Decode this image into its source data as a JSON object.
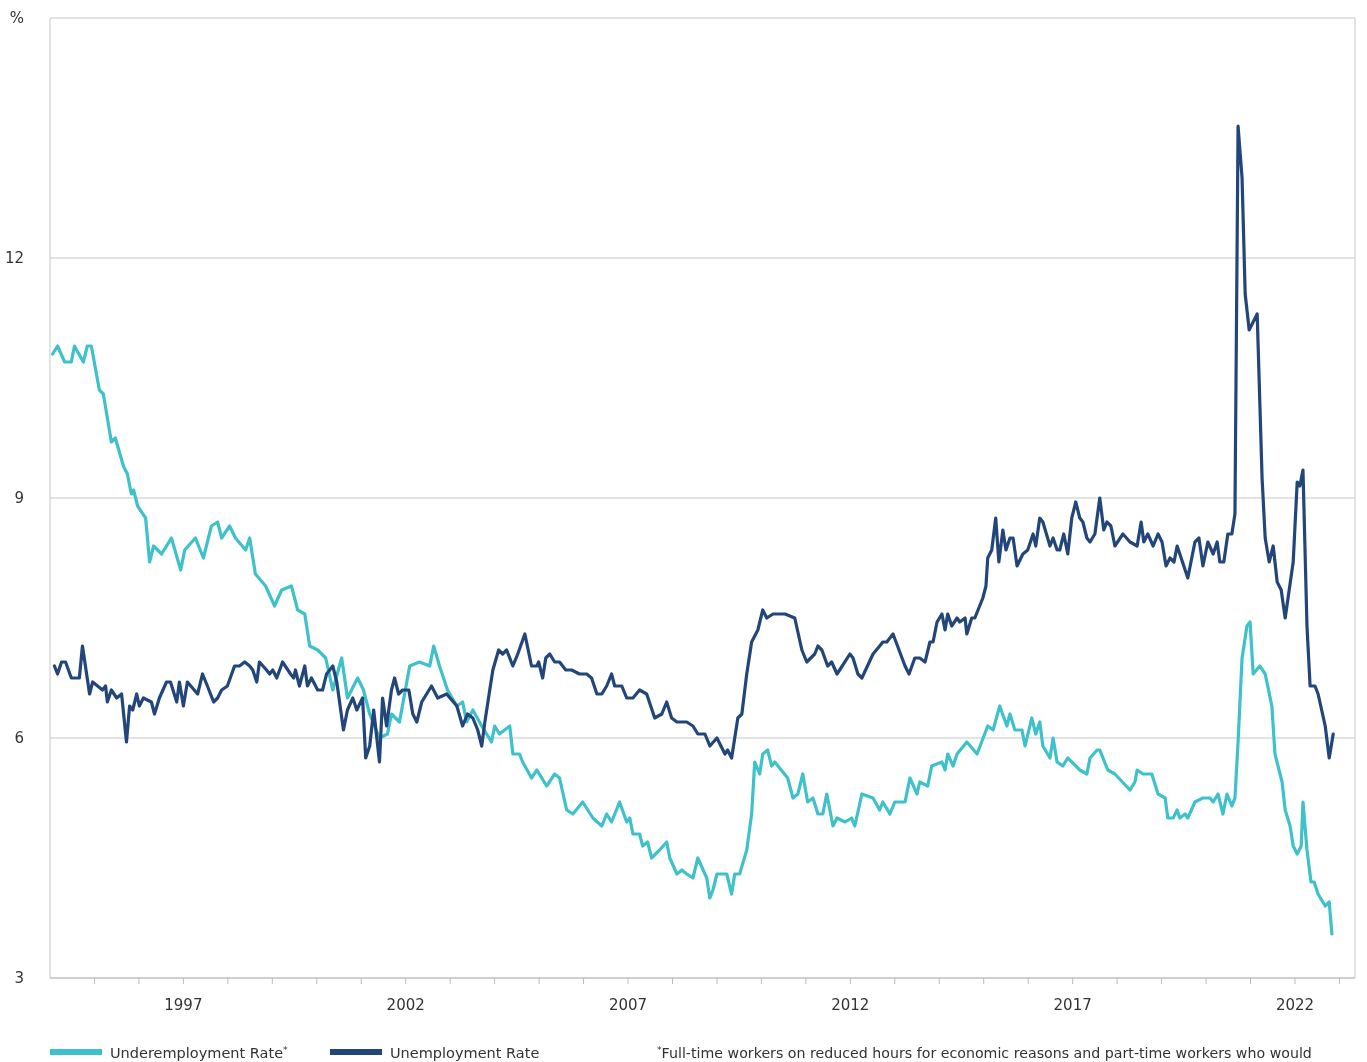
{
  "chart_data": {
    "type": "line",
    "ylabel": "%",
    "xlim": [
      1994,
      2023.35
    ],
    "ylim": [
      3,
      15
    ],
    "xticks": [
      {
        "value": 1995,
        "label": null
      },
      {
        "value": 1996,
        "label": null
      },
      1997,
      {
        "value": 1998,
        "label": null
      },
      {
        "value": 1999,
        "label": null
      },
      {
        "value": 2000,
        "label": null
      },
      {
        "value": 2001,
        "label": null
      },
      2002,
      {
        "value": 2003,
        "label": null
      },
      {
        "value": 2004,
        "label": null
      },
      {
        "value": 2005,
        "label": null
      },
      {
        "value": 2006,
        "label": null
      },
      2007,
      {
        "value": 2008,
        "label": null
      },
      {
        "value": 2009,
        "label": null
      },
      {
        "value": 2010,
        "label": null
      },
      {
        "value": 2011,
        "label": null
      },
      2012,
      {
        "value": 2013,
        "label": null
      },
      {
        "value": 2014,
        "label": null
      },
      {
        "value": 2015,
        "label": null
      },
      {
        "value": 2016,
        "label": null
      },
      2017,
      {
        "value": 2018,
        "label": null
      },
      {
        "value": 2019,
        "label": null
      },
      {
        "value": 2020,
        "label": null
      },
      {
        "value": 2021,
        "label": null
      },
      2022,
      {
        "value": 2023,
        "label": null
      }
    ],
    "yticks": [
      3,
      6,
      9,
      12
    ],
    "grid": "y",
    "legend": "bottom",
    "line_style": "solid",
    "marker": "none",
    "annotations": [
      "$^{*}$Full-time workers on reduced hours for economic reasons and part-time workers who would"
    ],
    "series": [
      {
        "name": "Underemployment Rate$^{*}$",
        "color": "#3fc1cb",
        "x": [
          1994.06,
          1994.17,
          1994.33,
          1994.48,
          1994.55,
          1994.75,
          1994.84,
          1994.93,
          1995.11,
          1995.2,
          1995.38,
          1995.47,
          1995.65,
          1995.74,
          1995.83,
          1995.88,
          1995.97,
          1996.15,
          1996.24,
          1996.33,
          1996.51,
          1996.73,
          1996.94,
          1997.03,
          1997.27,
          1997.45,
          1997.63,
          1997.77,
          1997.86,
          1998.04,
          1998.17,
          1998.4,
          1998.49,
          1998.62,
          1998.85,
          1999.05,
          1999.21,
          1999.43,
          1999.57,
          1999.73,
          1999.84,
          2000.02,
          2000.2,
          2000.36,
          2000.56,
          2000.69,
          2000.92,
          2001.05,
          2001.19,
          2001.41,
          2001.59,
          2001.68,
          2001.86,
          2002.09,
          2002.31,
          2002.54,
          2002.63,
          2002.76,
          2002.94,
          2003.15,
          2003.28,
          2003.37,
          2003.51,
          2003.71,
          2003.93,
          2004.0,
          2004.11,
          2004.34,
          2004.41,
          2004.56,
          2004.63,
          2004.83,
          2004.95,
          2005.17,
          2005.35,
          2005.46,
          2005.62,
          2005.76,
          2005.98,
          2006.21,
          2006.41,
          2006.52,
          2006.63,
          2006.81,
          2006.97,
          2007.04,
          2007.11,
          2007.26,
          2007.33,
          2007.44,
          2007.53,
          2007.71,
          2007.87,
          2007.94,
          2008.1,
          2008.21,
          2008.32,
          2008.46,
          2008.57,
          2008.77,
          2008.84,
          2008.91,
          2009.0,
          2009.22,
          2009.33,
          2009.4,
          2009.51,
          2009.67,
          2009.78,
          2009.85,
          2009.96,
          2010.03,
          2010.14,
          2010.23,
          2010.3,
          2010.59,
          2010.71,
          2010.82,
          2010.93,
          2011.04,
          2011.16,
          2011.27,
          2011.38,
          2011.47,
          2011.61,
          2011.7,
          2011.88,
          2012.03,
          2012.1,
          2012.26,
          2012.51,
          2012.66,
          2012.73,
          2012.89,
          2013.0,
          2013.23,
          2013.34,
          2013.5,
          2013.56,
          2013.74,
          2013.83,
          2014.06,
          2014.13,
          2014.19,
          2014.31,
          2014.4,
          2014.62,
          2014.85,
          2015.09,
          2015.21,
          2015.36,
          2015.52,
          2015.59,
          2015.7,
          2015.86,
          2015.93,
          2016.08,
          2016.17,
          2016.26,
          2016.33,
          2016.49,
          2016.56,
          2016.65,
          2016.78,
          2016.89,
          2017.16,
          2017.32,
          2017.39,
          2017.55,
          2017.61,
          2017.79,
          2017.95,
          2018.29,
          2018.4,
          2018.45,
          2018.58,
          2018.78,
          2018.92,
          2019.08,
          2019.14,
          2019.26,
          2019.35,
          2019.41,
          2019.53,
          2019.59,
          2019.75,
          2019.93,
          2020.09,
          2020.16,
          2020.27,
          2020.38,
          2020.47,
          2020.58,
          2020.65,
          2020.72,
          2020.81,
          2020.92,
          2020.99,
          2021.06,
          2021.21,
          2021.33,
          2021.48,
          2021.55,
          2021.71,
          2021.78,
          2021.89,
          2021.96,
          2022.05,
          2022.14,
          2022.18,
          2022.27,
          2022.36,
          2022.43,
          2022.52,
          2022.68,
          2022.77,
          2022.83
        ],
        "values": [
          10.8,
          10.9,
          10.7,
          10.7,
          10.9,
          10.7,
          10.9,
          10.9,
          10.35,
          10.3,
          9.7,
          9.75,
          9.4,
          9.3,
          9.05,
          9.1,
          8.9,
          8.75,
          8.2,
          8.4,
          8.3,
          8.5,
          8.1,
          8.35,
          8.5,
          8.25,
          8.65,
          8.7,
          8.5,
          8.65,
          8.5,
          8.35,
          8.5,
          8.05,
          7.9,
          7.65,
          7.85,
          7.9,
          7.6,
          7.55,
          7.15,
          7.1,
          7.0,
          6.6,
          7.0,
          6.5,
          6.75,
          6.6,
          6.3,
          6.0,
          6.05,
          6.3,
          6.2,
          6.9,
          6.95,
          6.9,
          7.15,
          6.9,
          6.6,
          6.4,
          6.45,
          6.2,
          6.35,
          6.15,
          5.95,
          6.15,
          6.05,
          6.15,
          5.8,
          5.8,
          5.7,
          5.5,
          5.6,
          5.4,
          5.55,
          5.5,
          5.1,
          5.05,
          5.2,
          5.0,
          4.9,
          5.05,
          4.95,
          5.2,
          4.95,
          5.0,
          4.8,
          4.8,
          4.65,
          4.7,
          4.5,
          4.6,
          4.7,
          4.5,
          4.3,
          4.35,
          4.3,
          4.25,
          4.5,
          4.25,
          4.0,
          4.1,
          4.3,
          4.3,
          4.05,
          4.3,
          4.3,
          4.6,
          5.05,
          5.7,
          5.55,
          5.8,
          5.85,
          5.65,
          5.7,
          5.5,
          5.25,
          5.3,
          5.55,
          5.2,
          5.25,
          5.05,
          5.05,
          5.3,
          4.9,
          5.0,
          4.95,
          5.0,
          4.9,
          5.3,
          5.25,
          5.1,
          5.2,
          5.05,
          5.2,
          5.2,
          5.5,
          5.3,
          5.45,
          5.4,
          5.65,
          5.7,
          5.6,
          5.8,
          5.65,
          5.8,
          5.95,
          5.8,
          6.15,
          6.1,
          6.4,
          6.15,
          6.3,
          6.1,
          6.1,
          5.9,
          6.25,
          6.05,
          6.2,
          5.9,
          5.75,
          6.0,
          5.7,
          5.65,
          5.75,
          5.6,
          5.55,
          5.75,
          5.85,
          5.85,
          5.6,
          5.55,
          5.35,
          5.45,
          5.6,
          5.55,
          5.55,
          5.3,
          5.25,
          5.0,
          5.0,
          5.1,
          5.0,
          5.05,
          5.0,
          5.2,
          5.25,
          5.25,
          5.2,
          5.3,
          5.05,
          5.3,
          5.15,
          5.25,
          5.95,
          7.0,
          7.4,
          7.45,
          6.8,
          6.9,
          6.8,
          6.4,
          5.8,
          5.45,
          5.1,
          4.9,
          4.65,
          4.55,
          4.65,
          5.2,
          4.6,
          4.2,
          4.2,
          4.05,
          3.9,
          3.95,
          3.55
        ]
      },
      {
        "name": "Unemployment Rate",
        "color": "#22467a",
        "x": [
          1994.1,
          1994.17,
          1994.26,
          1994.35,
          1994.48,
          1994.66,
          1994.73,
          1994.89,
          1994.96,
          1995.07,
          1995.18,
          1995.25,
          1995.29,
          1995.38,
          1995.5,
          1995.61,
          1995.72,
          1995.79,
          1995.86,
          1995.95,
          1996.01,
          1996.1,
          1996.28,
          1996.35,
          1996.46,
          1996.62,
          1996.71,
          1996.85,
          1996.91,
          1997.0,
          1997.09,
          1997.32,
          1997.43,
          1997.54,
          1997.68,
          1997.77,
          1997.86,
          1997.99,
          1998.15,
          1998.26,
          1998.38,
          1998.49,
          1998.56,
          1998.65,
          1998.71,
          1998.87,
          1998.94,
          1999.01,
          1999.1,
          1999.23,
          1999.41,
          1999.48,
          1999.52,
          1999.61,
          1999.73,
          1999.79,
          1999.88,
          2000.02,
          2000.13,
          2000.22,
          2000.36,
          2000.45,
          2000.6,
          2000.69,
          2000.81,
          2000.9,
          2001.03,
          2001.1,
          2001.19,
          2001.28,
          2001.41,
          2001.48,
          2001.57,
          2001.68,
          2001.75,
          2001.84,
          2001.93,
          2002.07,
          2002.16,
          2002.25,
          2002.36,
          2002.58,
          2002.72,
          2002.92,
          2003.15,
          2003.28,
          2003.39,
          2003.51,
          2003.62,
          2003.71,
          2003.78,
          2003.89,
          2003.96,
          2004.09,
          2004.18,
          2004.27,
          2004.41,
          2004.52,
          2004.68,
          2004.83,
          2004.95,
          2004.99,
          2005.08,
          2005.15,
          2005.24,
          2005.35,
          2005.46,
          2005.6,
          2005.73,
          2005.91,
          2006.07,
          2006.18,
          2006.3,
          2006.41,
          2006.52,
          2006.63,
          2006.7,
          2006.86,
          2006.97,
          2007.11,
          2007.26,
          2007.42,
          2007.6,
          2007.76,
          2007.87,
          2007.98,
          2008.1,
          2008.32,
          2008.46,
          2008.57,
          2008.73,
          2008.84,
          2009.0,
          2009.18,
          2009.24,
          2009.33,
          2009.47,
          2009.56,
          2009.67,
          2009.78,
          2009.92,
          2010.03,
          2010.12,
          2010.26,
          2010.53,
          2010.75,
          2010.91,
          2011.02,
          2011.2,
          2011.27,
          2011.36,
          2011.49,
          2011.58,
          2011.7,
          2011.76,
          2011.99,
          2012.06,
          2012.17,
          2012.26,
          2012.51,
          2012.66,
          2012.73,
          2012.82,
          2012.96,
          2013.23,
          2013.32,
          2013.45,
          2013.56,
          2013.68,
          2013.79,
          2013.86,
          2013.95,
          2014.06,
          2014.13,
          2014.19,
          2014.28,
          2014.4,
          2014.46,
          2014.58,
          2014.62,
          2014.73,
          2014.8,
          2014.98,
          2015.05,
          2015.09,
          2015.18,
          2015.27,
          2015.34,
          2015.43,
          2015.5,
          2015.59,
          2015.66,
          2015.75,
          2015.88,
          2015.99,
          2016.11,
          2016.17,
          2016.26,
          2016.33,
          2016.49,
          2016.56,
          2016.65,
          2016.71,
          2016.8,
          2016.89,
          2016.98,
          2017.07,
          2017.16,
          2017.23,
          2017.32,
          2017.39,
          2017.5,
          2017.61,
          2017.7,
          2017.77,
          2017.86,
          2017.95,
          2018.13,
          2018.29,
          2018.45,
          2018.54,
          2018.6,
          2018.69,
          2018.81,
          2018.92,
          2019.01,
          2019.1,
          2019.19,
          2019.28,
          2019.35,
          2019.53,
          2019.59,
          2019.75,
          2019.84,
          2019.93,
          2020.04,
          2020.16,
          2020.25,
          2020.31,
          2020.4,
          2020.49,
          2020.58,
          2020.65,
          2020.72,
          2020.81,
          2020.88,
          2020.97,
          2021.15,
          2021.26,
          2021.33,
          2021.42,
          2021.51,
          2021.6,
          2021.69,
          2021.78,
          2021.96,
          2022.05,
          2022.11,
          2022.18,
          2022.27,
          2022.34,
          2022.45,
          2022.52,
          2022.68,
          2022.77,
          2022.86
        ],
        "values": [
          6.9,
          6.8,
          6.95,
          6.95,
          6.75,
          6.75,
          7.15,
          6.55,
          6.7,
          6.65,
          6.6,
          6.65,
          6.45,
          6.6,
          6.5,
          6.55,
          5.95,
          6.4,
          6.35,
          6.55,
          6.4,
          6.5,
          6.45,
          6.3,
          6.5,
          6.7,
          6.7,
          6.45,
          6.7,
          6.4,
          6.7,
          6.55,
          6.8,
          6.65,
          6.45,
          6.5,
          6.6,
          6.65,
          6.9,
          6.9,
          6.95,
          6.9,
          6.85,
          6.7,
          6.95,
          6.85,
          6.8,
          6.85,
          6.75,
          6.95,
          6.8,
          6.75,
          6.85,
          6.65,
          6.9,
          6.65,
          6.75,
          6.6,
          6.6,
          6.8,
          6.9,
          6.7,
          6.1,
          6.35,
          6.5,
          6.35,
          6.5,
          5.75,
          5.9,
          6.35,
          5.7,
          6.5,
          6.15,
          6.6,
          6.75,
          6.55,
          6.6,
          6.6,
          6.3,
          6.2,
          6.45,
          6.65,
          6.5,
          6.55,
          6.4,
          6.15,
          6.3,
          6.25,
          6.1,
          5.9,
          6.2,
          6.6,
          6.85,
          7.1,
          7.05,
          7.1,
          6.9,
          7.05,
          7.3,
          6.9,
          6.9,
          6.95,
          6.75,
          7.0,
          7.05,
          6.95,
          6.95,
          6.85,
          6.85,
          6.8,
          6.8,
          6.75,
          6.55,
          6.55,
          6.65,
          6.8,
          6.65,
          6.65,
          6.5,
          6.5,
          6.6,
          6.55,
          6.25,
          6.3,
          6.45,
          6.25,
          6.2,
          6.2,
          6.15,
          6.05,
          6.05,
          5.9,
          6.0,
          5.8,
          5.85,
          5.75,
          6.25,
          6.3,
          6.8,
          7.2,
          7.35,
          7.6,
          7.5,
          7.55,
          7.55,
          7.5,
          7.1,
          6.95,
          7.05,
          7.15,
          7.1,
          6.9,
          6.95,
          6.8,
          6.85,
          7.05,
          7.0,
          6.8,
          6.75,
          7.05,
          7.15,
          7.2,
          7.2,
          7.3,
          6.9,
          6.8,
          7.0,
          7.0,
          6.95,
          7.2,
          7.2,
          7.45,
          7.55,
          7.35,
          7.55,
          7.4,
          7.5,
          7.45,
          7.5,
          7.3,
          7.5,
          7.5,
          7.75,
          7.9,
          8.25,
          8.35,
          8.75,
          8.2,
          8.6,
          8.35,
          8.5,
          8.5,
          8.15,
          8.3,
          8.35,
          8.55,
          8.4,
          8.75,
          8.7,
          8.4,
          8.5,
          8.35,
          8.35,
          8.55,
          8.3,
          8.75,
          8.95,
          8.75,
          8.7,
          8.5,
          8.45,
          8.55,
          9.0,
          8.6,
          8.7,
          8.65,
          8.4,
          8.55,
          8.45,
          8.4,
          8.7,
          8.45,
          8.55,
          8.4,
          8.55,
          8.45,
          8.15,
          8.25,
          8.2,
          8.4,
          8.1,
          8.0,
          8.45,
          8.5,
          8.15,
          8.45,
          8.3,
          8.45,
          8.2,
          8.2,
          8.55,
          8.55,
          8.8,
          13.65,
          13.0,
          11.55,
          11.1,
          11.3,
          9.25,
          8.5,
          8.2,
          8.4,
          7.95,
          7.85,
          7.5,
          8.2,
          9.2,
          9.15,
          9.35,
          7.4,
          6.65,
          6.65,
          6.55,
          6.15,
          5.75,
          6.05
        ]
      }
    ]
  }
}
